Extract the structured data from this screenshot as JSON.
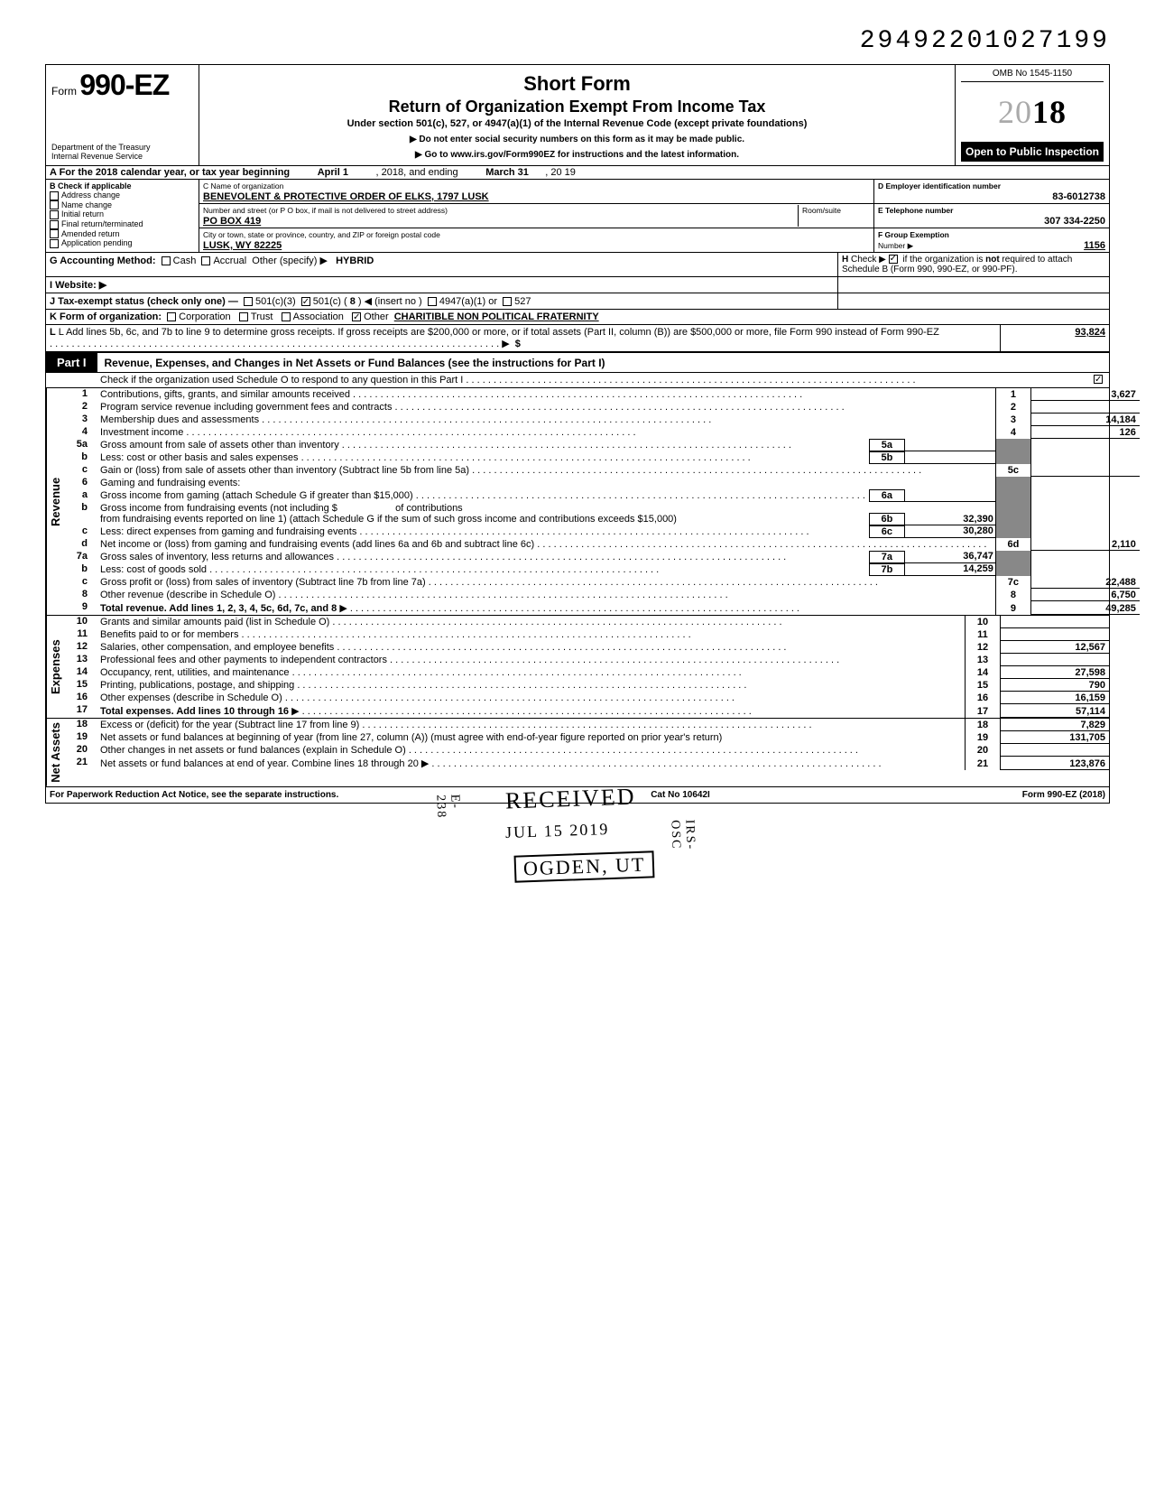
{
  "dln": "29492201027199",
  "form_number": "990-EZ",
  "title1": "Short Form",
  "title2": "Return of Organization Exempt From Income Tax",
  "subtitle": "Under section 501(c), 527, or 4947(a)(1) of the Internal Revenue Code (except private foundations)",
  "warn1": "▶ Do not enter social security numbers on this form as it may be made public.",
  "warn2": "▶ Go to www.irs.gov/Form990EZ for instructions and the latest information.",
  "dept1": "Department of the Treasury",
  "dept2": "Internal Revenue Service",
  "omb": "OMB No 1545-1150",
  "year_full": "2018",
  "open_public": "Open to Public Inspection",
  "A": {
    "text": "A For the 2018 calendar year, or tax year beginning",
    "begin": "April 1",
    "mid": ", 2018, and ending",
    "end": "March 31",
    "yr": ", 20  19"
  },
  "B": {
    "hdr": "B Check if applicable",
    "opts": [
      "Address change",
      "Name change",
      "Initial return",
      "Final return/terminated",
      "Amended return",
      "Application pending"
    ]
  },
  "C": {
    "label": "C  Name of organization",
    "name": "BENEVOLENT & PROTECTIVE ORDER OF ELKS, 1797 LUSK",
    "street_label": "Number and street (or P O  box, if mail is not delivered to street address)",
    "room_label": "Room/suite",
    "street": "PO BOX 419",
    "city_label": "City or town, state or province, country, and ZIP or foreign postal code",
    "city": "LUSK, WY 82225"
  },
  "D": {
    "label": "D Employer identification number",
    "val": "83-6012738"
  },
  "Etel": {
    "label": "E Telephone number",
    "val": "307 334-2250"
  },
  "Fgrp": {
    "label": "F Group Exemption",
    "label2": "Number ▶",
    "val": "1156"
  },
  "G": {
    "label": "G  Accounting Method:",
    "cash": "Cash",
    "accrual": "Accrual",
    "other": "Other (specify) ▶",
    "val": "HYBRID"
  },
  "H": {
    "text": "H  Check ▶ ☑ if the organization is not required to attach Schedule B (Form 990, 990-EZ, or 990-PF)."
  },
  "I": "I  Website: ▶",
  "J": {
    "label": "J  Tax-exempt status (check only one) —",
    "o1": "501(c)(3)",
    "o2": "501(c) (",
    "o2n": "8",
    "o2b": ") ◀ (insert no )",
    "o3": "4947(a)(1) or",
    "o4": "527"
  },
  "K": {
    "label": "K  Form of organization:",
    "corp": "Corporation",
    "trust": "Trust",
    "assoc": "Association",
    "other": "Other",
    "val": "CHARITIBLE NON POLITICAL FRATERNITY"
  },
  "L": {
    "text": "L  Add lines 5b, 6c, and 7b to line 9 to determine gross receipts. If gross receipts are $200,000 or more, or if total assets (Part II, column (B)) are $500,000 or more, file Form 990 instead of Form 990-EZ",
    "amt": "93,824"
  },
  "part1": {
    "tab": "Part I",
    "title": "Revenue, Expenses, and Changes in Net Assets or Fund Balances (see the instructions for Part I)",
    "check": "Check if the organization used Schedule O to respond to any question in this Part I"
  },
  "revenue_label": "Revenue",
  "expenses_label": "Expenses",
  "netassets_label": "Net Assets",
  "lines": {
    "l1": {
      "n": "1",
      "t": "Contributions, gifts, grants, and similar amounts received",
      "box": "1",
      "v": "3,627"
    },
    "l2": {
      "n": "2",
      "t": "Program service revenue including government fees and contracts",
      "box": "2",
      "v": ""
    },
    "l3": {
      "n": "3",
      "t": "Membership dues and assessments",
      "box": "3",
      "v": "14,184"
    },
    "l4": {
      "n": "4",
      "t": "Investment income",
      "box": "4",
      "v": "126"
    },
    "l5a": {
      "n": "5a",
      "t": "Gross amount from sale of assets other than inventory",
      "ibox": "5a",
      "iv": ""
    },
    "l5b": {
      "n": "b",
      "t": "Less: cost or other basis and sales expenses",
      "ibox": "5b",
      "iv": ""
    },
    "l5c": {
      "n": "c",
      "t": "Gain or (loss) from sale of assets other than inventory (Subtract line 5b from line 5a)",
      "box": "5c",
      "v": ""
    },
    "l6": {
      "n": "6",
      "t": "Gaming and fundraising events:"
    },
    "l6a": {
      "n": "a",
      "t": "Gross income from gaming (attach Schedule G if greater than $15,000)",
      "ibox": "6a",
      "iv": ""
    },
    "l6b": {
      "n": "b",
      "t1": "Gross income from fundraising events (not including  $",
      "t2": "of contributions from fundraising events reported on line 1) (attach Schedule G if the sum of such gross income and contributions exceeds $15,000)",
      "ibox": "6b",
      "iv": "32,390"
    },
    "l6c": {
      "n": "c",
      "t": "Less: direct expenses from gaming and fundraising events",
      "ibox": "6c",
      "iv": "30,280"
    },
    "l6d": {
      "n": "d",
      "t": "Net income or (loss) from gaming and fundraising events (add lines 6a and 6b and subtract line 6c)",
      "box": "6d",
      "v": "2,110"
    },
    "l7a": {
      "n": "7a",
      "t": "Gross sales of inventory, less returns and allowances",
      "ibox": "7a",
      "iv": "36,747"
    },
    "l7b": {
      "n": "b",
      "t": "Less: cost of goods sold",
      "ibox": "7b",
      "iv": "14,259"
    },
    "l7c": {
      "n": "c",
      "t": "Gross profit or (loss) from sales of inventory (Subtract line 7b from line 7a)",
      "box": "7c",
      "v": "22,488"
    },
    "l8": {
      "n": "8",
      "t": "Other revenue (describe in Schedule O)",
      "box": "8",
      "v": "6,750"
    },
    "l9": {
      "n": "9",
      "t": "Total revenue. Add lines 1, 2, 3, 4, 5c, 6d, 7c, and 8",
      "box": "9",
      "v": "49,285"
    },
    "l10": {
      "n": "10",
      "t": "Grants and similar amounts paid (list in Schedule O)",
      "box": "10",
      "v": ""
    },
    "l11": {
      "n": "11",
      "t": "Benefits paid to or for members",
      "box": "11",
      "v": ""
    },
    "l12": {
      "n": "12",
      "t": "Salaries, other compensation, and employee benefits",
      "box": "12",
      "v": "12,567"
    },
    "l13": {
      "n": "13",
      "t": "Professional fees and other payments to independent contractors",
      "box": "13",
      "v": ""
    },
    "l14": {
      "n": "14",
      "t": "Occupancy, rent, utilities, and maintenance",
      "box": "14",
      "v": "27,598"
    },
    "l15": {
      "n": "15",
      "t": "Printing, publications, postage, and shipping",
      "box": "15",
      "v": "790"
    },
    "l16": {
      "n": "16",
      "t": "Other expenses (describe in Schedule O)",
      "box": "16",
      "v": "16,159"
    },
    "l17": {
      "n": "17",
      "t": "Total expenses. Add lines 10 through 16",
      "box": "17",
      "v": "57,114"
    },
    "l18": {
      "n": "18",
      "t": "Excess or (deficit) for the year (Subtract line 17 from line 9)",
      "box": "18",
      "v": "7,829"
    },
    "l19": {
      "n": "19",
      "t": "Net assets or fund balances at beginning of year (from line 27, column (A)) (must agree with end-of-year figure reported on prior year's return)",
      "box": "19",
      "v": "131,705"
    },
    "l20": {
      "n": "20",
      "t": "Other changes in net assets or fund balances (explain in Schedule O)",
      "box": "20",
      "v": ""
    },
    "l21": {
      "n": "21",
      "t": "Net assets or fund balances at end of year. Combine lines 18 through 20",
      "box": "21",
      "v": "123,876"
    }
  },
  "foot": {
    "left": "For Paperwork Reduction Act Notice, see the separate instructions.",
    "mid": "Cat No 10642I",
    "right": "Form 990-EZ (2018)"
  },
  "stamps": {
    "received": "RECEIVED",
    "date": "JUL 15 2019",
    "ogden": "OGDEN, UT",
    "irsosc": "IRS-OSC",
    "e238": "E-238"
  },
  "colors": {
    "black": "#000000",
    "white": "#ffffff",
    "shade": "#888888"
  }
}
